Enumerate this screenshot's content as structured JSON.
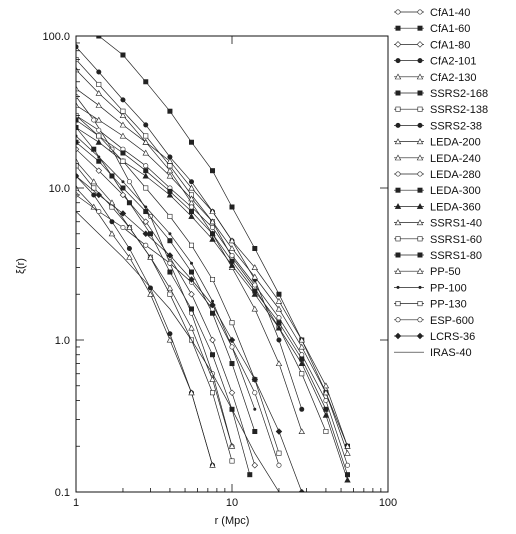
{
  "chart_data": {
    "type": "line",
    "title": "",
    "xlabel": "r (Mpc)",
    "ylabel": "ξ(r)",
    "x_scale": "log",
    "y_scale": "log",
    "xlim": [
      1,
      100
    ],
    "ylim": [
      0.1,
      100
    ],
    "x_ticks": [
      {
        "value": 1,
        "label": "1"
      },
      {
        "value": 10,
        "label": "10"
      },
      {
        "value": 100,
        "label": "100"
      }
    ],
    "y_ticks": [
      {
        "value": 0.1,
        "label": "0.1"
      },
      {
        "value": 1,
        "label": "1.0"
      },
      {
        "value": 10,
        "label": "10.0"
      },
      {
        "value": 100,
        "label": "100.0"
      }
    ],
    "grid": false,
    "legend_position": "right",
    "series": [
      {
        "name": "CfA1-40",
        "marker": "open-circle",
        "x": [
          1.0,
          1.3,
          1.7,
          2.2,
          3.0,
          4.0,
          5.5,
          7.5,
          10.0
        ],
        "y": [
          40,
          28,
          18,
          11,
          6.5,
          3.2,
          1.5,
          0.6,
          0.2
        ]
      },
      {
        "name": "CfA1-60",
        "marker": "filled-square",
        "x": [
          1.0,
          1.3,
          1.7,
          2.2,
          3.0,
          4.0,
          5.5,
          7.5,
          10.0,
          13.0
        ],
        "y": [
          25,
          18,
          12,
          8,
          5,
          2.8,
          1.6,
          0.8,
          0.35,
          0.13
        ]
      },
      {
        "name": "CfA1-80",
        "marker": "open-diamond",
        "x": [
          1.0,
          1.4,
          2.0,
          2.8,
          4.0,
          5.5,
          7.5,
          10.0,
          14.0
        ],
        "y": [
          18,
          13,
          9,
          6,
          3.5,
          2.0,
          1.0,
          0.45,
          0.15
        ]
      },
      {
        "name": "CfA2-101",
        "marker": "filled-circle",
        "x": [
          1.0,
          1.4,
          2.0,
          2.8,
          4.0,
          5.5,
          7.5,
          10.0,
          14.0,
          20.0,
          28.0
        ],
        "y": [
          85,
          58,
          38,
          26,
          16,
          11,
          7,
          4.5,
          2.5,
          1.0,
          0.35
        ]
      },
      {
        "name": "CfA2-130",
        "marker": "open-triangle",
        "x": [
          1.0,
          1.4,
          2.0,
          2.8,
          4.0,
          5.5,
          7.5,
          10.0,
          14.0,
          20.0,
          28.0
        ],
        "y": [
          60,
          42,
          30,
          20,
          13,
          8,
          5,
          3.0,
          1.6,
          0.7,
          0.25
        ]
      },
      {
        "name": "SSRS2-168",
        "marker": "filled-square",
        "x": [
          1.4,
          2.0,
          2.8,
          4.0,
          5.5,
          7.5,
          10.0,
          14.0,
          20.0,
          28.0,
          40.0,
          55.0
        ],
        "y": [
          100,
          75,
          50,
          32,
          20,
          13,
          7.5,
          4,
          2.0,
          1.0,
          0.45,
          0.2
        ]
      },
      {
        "name": "SSRS2-138",
        "marker": "open-square",
        "x": [
          1.0,
          1.4,
          2.0,
          2.8,
          4.0,
          5.5,
          7.5,
          10.0,
          14.0,
          20.0,
          28.0,
          40.0
        ],
        "y": [
          70,
          48,
          32,
          22,
          14,
          9,
          6,
          3.5,
          2.2,
          1.2,
          0.6,
          0.25
        ]
      },
      {
        "name": "SSRS2-38",
        "marker": "filled-circle",
        "x": [
          1.0,
          1.3,
          1.7,
          2.2,
          3.0,
          4.0,
          5.5,
          7.5
        ],
        "y": [
          12,
          9,
          6,
          4,
          2.2,
          1.1,
          0.45,
          0.15
        ]
      },
      {
        "name": "LEDA-200",
        "marker": "open-triangle",
        "x": [
          1.0,
          1.4,
          2.0,
          2.8,
          4.0,
          5.5,
          7.5,
          10.0,
          14.0,
          20.0,
          28.0,
          40.0,
          55.0
        ],
        "y": [
          45,
          35,
          26,
          20,
          15,
          10,
          7.0,
          4.5,
          3.0,
          1.8,
          1.0,
          0.5,
          0.2
        ]
      },
      {
        "name": "LEDA-240",
        "marker": "open-triangle",
        "x": [
          1.0,
          1.4,
          2.0,
          2.8,
          4.0,
          5.5,
          7.5,
          10.0,
          14.0,
          20.0,
          28.0,
          40.0,
          55.0
        ],
        "y": [
          35,
          28,
          22,
          17,
          12,
          8.5,
          6.0,
          4.0,
          2.6,
          1.6,
          0.9,
          0.45,
          0.18
        ]
      },
      {
        "name": "LEDA-280",
        "marker": "open-circle",
        "x": [
          1.0,
          1.4,
          2.0,
          2.8,
          4.0,
          5.5,
          7.5,
          10.0,
          14.0,
          20.0,
          28.0,
          40.0,
          55.0
        ],
        "y": [
          30,
          24,
          18,
          14,
          10,
          7.5,
          5.5,
          3.6,
          2.3,
          1.4,
          0.8,
          0.4,
          0.15
        ]
      },
      {
        "name": "LEDA-300",
        "marker": "filled-square",
        "x": [
          1.0,
          1.4,
          2.0,
          2.8,
          4.0,
          5.5,
          7.5,
          10.0,
          14.0,
          20.0,
          28.0,
          40.0,
          55.0
        ],
        "y": [
          28,
          22,
          17,
          13,
          9.5,
          7.0,
          5.0,
          3.3,
          2.1,
          1.3,
          0.75,
          0.35,
          0.13
        ]
      },
      {
        "name": "LEDA-360",
        "marker": "filled-triangle",
        "x": [
          1.0,
          1.4,
          2.0,
          2.8,
          4.0,
          5.5,
          7.5,
          10.0,
          14.0,
          20.0,
          28.0,
          40.0,
          55.0
        ],
        "y": [
          25,
          20,
          15,
          12,
          9,
          6.5,
          4.6,
          3.1,
          2.0,
          1.2,
          0.7,
          0.32,
          0.12
        ]
      },
      {
        "name": "SSRS1-40",
        "marker": "open-triangle",
        "x": [
          1.0,
          1.3,
          1.7,
          2.2,
          3.0,
          4.0,
          5.5,
          7.5
        ],
        "y": [
          10,
          7.5,
          5,
          3.5,
          2.0,
          1.0,
          0.45,
          0.15
        ]
      },
      {
        "name": "SSRS1-60",
        "marker": "open-square",
        "x": [
          1.0,
          1.3,
          1.7,
          2.2,
          3.0,
          4.0,
          5.5,
          7.5,
          10.0
        ],
        "y": [
          14,
          10,
          7.5,
          5.5,
          3.5,
          2.0,
          1.0,
          0.45,
          0.16
        ]
      },
      {
        "name": "SSRS1-80",
        "marker": "filled-square",
        "x": [
          1.0,
          1.4,
          2.0,
          2.8,
          4.0,
          5.5,
          7.5,
          10.0,
          14.0
        ],
        "y": [
          20,
          15,
          10,
          7,
          4.5,
          2.8,
          1.5,
          0.7,
          0.25
        ]
      },
      {
        "name": "PP-50",
        "marker": "open-triangle",
        "x": [
          1.0,
          1.3,
          1.7,
          2.2,
          3.0,
          4.0,
          5.5,
          7.5,
          10.0
        ],
        "y": [
          15,
          11,
          8,
          5.5,
          3.5,
          2.2,
          1.2,
          0.55,
          0.2
        ]
      },
      {
        "name": "PP-100",
        "marker": "dot",
        "x": [
          1.0,
          1.4,
          2.0,
          2.8,
          4.0,
          5.5,
          7.5,
          10.0,
          14.0
        ],
        "y": [
          22,
          16,
          11,
          7.5,
          5.0,
          3.2,
          1.8,
          0.9,
          0.35
        ]
      },
      {
        "name": "PP-130",
        "marker": "open-square",
        "x": [
          1.0,
          1.4,
          2.0,
          2.8,
          4.0,
          5.5,
          7.5,
          10.0,
          14.0,
          20.0
        ],
        "y": [
          30,
          22,
          15,
          10,
          6.5,
          4.2,
          2.5,
          1.3,
          0.55,
          0.18
        ]
      },
      {
        "name": "ESP-600",
        "marker": "open-circle",
        "x": [
          1.0,
          1.4,
          2.0,
          2.8,
          4.0,
          5.5,
          7.5,
          10.0,
          14.0,
          20.0
        ],
        "y": [
          9,
          7,
          5.5,
          4.2,
          3.2,
          2.4,
          1.6,
          0.9,
          0.45,
          0.15
        ]
      },
      {
        "name": "LCRS-36",
        "marker": "filled-diamond",
        "x": [
          1.0,
          1.4,
          2.0,
          2.8,
          4.0,
          5.5,
          7.5,
          10.0,
          14.0,
          20.0,
          28.0
        ],
        "y": [
          12,
          9,
          6.8,
          5.0,
          3.6,
          2.5,
          1.7,
          1.0,
          0.55,
          0.25,
          0.1
        ]
      },
      {
        "name": "IRAS-40",
        "marker": "none",
        "x": [
          1.0,
          1.4,
          2.0,
          2.8,
          4.0,
          5.5,
          7.5,
          10.0,
          14.0,
          20.0
        ],
        "y": [
          7,
          5,
          3.5,
          2.4,
          1.6,
          1.0,
          0.6,
          0.35,
          0.18,
          0.1
        ]
      }
    ]
  }
}
